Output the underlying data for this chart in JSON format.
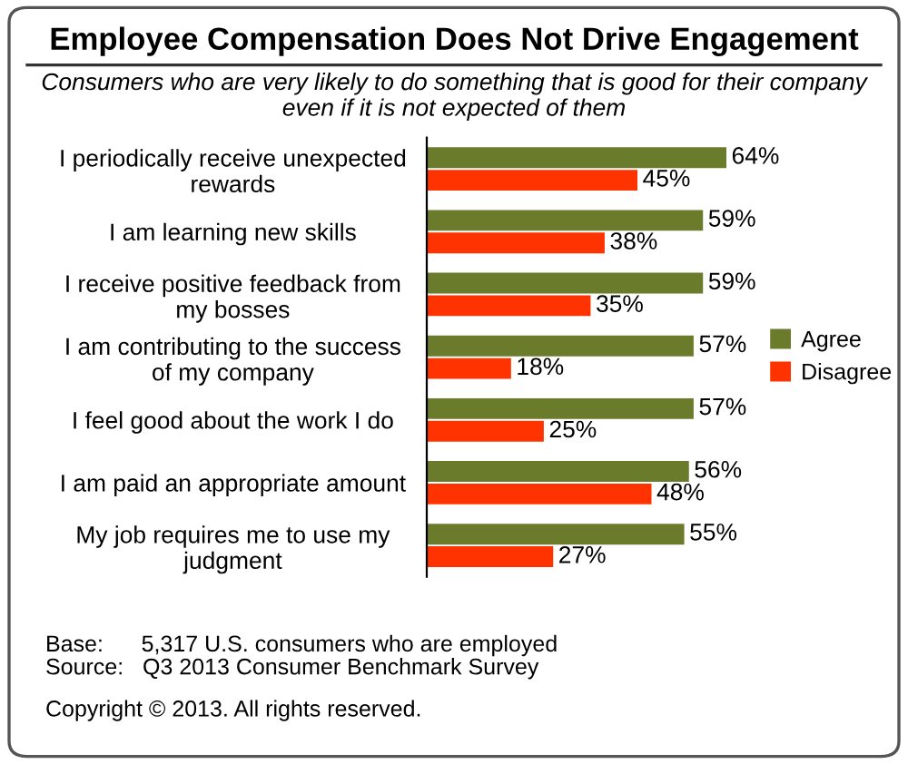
{
  "chart_data": {
    "type": "bar",
    "orientation": "horizontal",
    "title": "Employee Compensation Does Not Drive Engagement",
    "subtitle": "Consumers who are very likely to do something that is good for their company\neven if it is not expected of them",
    "categories": [
      "I periodically receive unexpected\nrewards",
      "I am learning new skills",
      "I receive positive feedback from\nmy bosses",
      "I am contributing to the success\nof my company",
      "I feel good about the work I do",
      "I am paid an appropriate amount",
      "My job requires me to use my\njudgment"
    ],
    "series": [
      {
        "name": "Agree",
        "color": "#6b7b2c",
        "values": [
          64,
          59,
          59,
          57,
          57,
          56,
          55
        ],
        "value_labels": [
          "64%",
          "59%",
          "59%",
          "57%",
          "57%",
          "56%",
          "55%"
        ]
      },
      {
        "name": "Disagree",
        "color": "#ff3300",
        "values": [
          45,
          38,
          35,
          18,
          25,
          48,
          27
        ],
        "value_labels": [
          "45%",
          "38%",
          "35%",
          "18%",
          "25%",
          "48%",
          "27%"
        ]
      }
    ],
    "legend": "right",
    "grid": false,
    "annotations": [
      "Base:      5,317 U.S. consumers who are employed",
      "Source:   Q3 2013 Consumer Benchmark Survey",
      "Copyright © 2013. All rights reserved."
    ]
  }
}
